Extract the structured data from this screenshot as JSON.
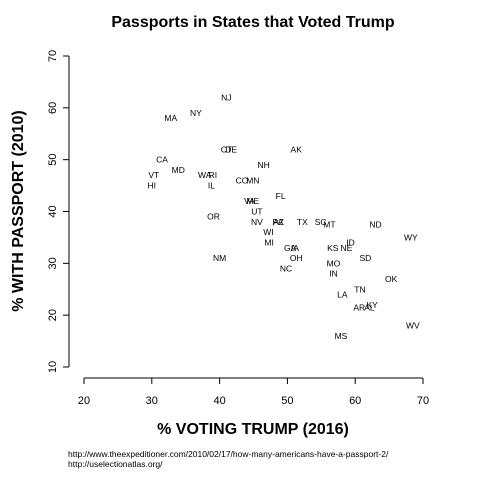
{
  "chart_data": {
    "type": "scatter",
    "title": "Passports in States that Voted Trump",
    "xlabel": "% VOTING TRUMP (2016)",
    "ylabel": "% WITH PASSPORT (2010)",
    "xlim": [
      20,
      70
    ],
    "ylim": [
      10,
      70
    ],
    "xticks": [
      20,
      30,
      40,
      50,
      60,
      70
    ],
    "yticks": [
      10,
      20,
      30,
      40,
      50,
      60,
      70
    ],
    "grid": false,
    "points": [
      {
        "label": "NJ",
        "x": 41.0,
        "y": 62.0
      },
      {
        "label": "NY",
        "x": 36.5,
        "y": 59.0
      },
      {
        "label": "MA",
        "x": 32.8,
        "y": 58.0
      },
      {
        "label": "CT",
        "x": 41.0,
        "y": 52.0
      },
      {
        "label": "DE",
        "x": 41.7,
        "y": 52.0
      },
      {
        "label": "AK",
        "x": 51.3,
        "y": 52.0
      },
      {
        "label": "CA",
        "x": 31.5,
        "y": 50.0
      },
      {
        "label": "NH",
        "x": 46.5,
        "y": 49.0
      },
      {
        "label": "MD",
        "x": 33.9,
        "y": 48.0
      },
      {
        "label": "VT",
        "x": 30.3,
        "y": 47.0
      },
      {
        "label": "WA",
        "x": 37.8,
        "y": 47.0
      },
      {
        "label": "RI",
        "x": 39.0,
        "y": 47.0
      },
      {
        "label": "CO",
        "x": 43.3,
        "y": 46.0
      },
      {
        "label": "MN",
        "x": 44.9,
        "y": 46.0
      },
      {
        "label": "HI",
        "x": 30.0,
        "y": 45.0
      },
      {
        "label": "IL",
        "x": 38.8,
        "y": 45.0
      },
      {
        "label": "FL",
        "x": 49.0,
        "y": 43.0
      },
      {
        "label": "VA",
        "x": 44.4,
        "y": 42.0
      },
      {
        "label": "ME",
        "x": 44.9,
        "y": 42.0
      },
      {
        "label": "UT",
        "x": 45.5,
        "y": 40.0
      },
      {
        "label": "OR",
        "x": 39.1,
        "y": 39.0
      },
      {
        "label": "NV",
        "x": 45.5,
        "y": 38.0
      },
      {
        "label": "PA",
        "x": 48.6,
        "y": 38.0
      },
      {
        "label": "AZ",
        "x": 48.7,
        "y": 38.0
      },
      {
        "label": "TX",
        "x": 52.2,
        "y": 38.0
      },
      {
        "label": "SC",
        "x": 54.9,
        "y": 38.0
      },
      {
        "label": "MT",
        "x": 56.2,
        "y": 37.5
      },
      {
        "label": "ND",
        "x": 63.0,
        "y": 37.5
      },
      {
        "label": "WI",
        "x": 47.2,
        "y": 36.0
      },
      {
        "label": "WY",
        "x": 68.2,
        "y": 35.0
      },
      {
        "label": "MI",
        "x": 47.3,
        "y": 34.0
      },
      {
        "label": "ID",
        "x": 59.3,
        "y": 34.0
      },
      {
        "label": "KS",
        "x": 56.7,
        "y": 33.0
      },
      {
        "label": "NE",
        "x": 58.7,
        "y": 33.0
      },
      {
        "label": "GA",
        "x": 50.4,
        "y": 33.0
      },
      {
        "label": "IA",
        "x": 51.1,
        "y": 33.0
      },
      {
        "label": "NM",
        "x": 40.0,
        "y": 31.0
      },
      {
        "label": "OH",
        "x": 51.3,
        "y": 31.0
      },
      {
        "label": "SD",
        "x": 61.5,
        "y": 31.0
      },
      {
        "label": "MO",
        "x": 56.8,
        "y": 30.0
      },
      {
        "label": "NC",
        "x": 49.8,
        "y": 29.0
      },
      {
        "label": "IN",
        "x": 56.8,
        "y": 28.0
      },
      {
        "label": "OK",
        "x": 65.3,
        "y": 27.0
      },
      {
        "label": "TN",
        "x": 60.7,
        "y": 25.0
      },
      {
        "label": "LA",
        "x": 58.1,
        "y": 24.0
      },
      {
        "label": "AR",
        "x": 60.6,
        "y": 21.5
      },
      {
        "label": "AL",
        "x": 62.1,
        "y": 21.5
      },
      {
        "label": "KY",
        "x": 62.5,
        "y": 22.0
      },
      {
        "label": "WV",
        "x": 68.5,
        "y": 18.0
      },
      {
        "label": "MS",
        "x": 57.9,
        "y": 16.0
      }
    ]
  },
  "source": {
    "line1": "http://www.theexpeditioner.com/2010/02/17/how-many-americans-have-a-passport-2/",
    "line2": "http://uselectionatlas.org/"
  }
}
